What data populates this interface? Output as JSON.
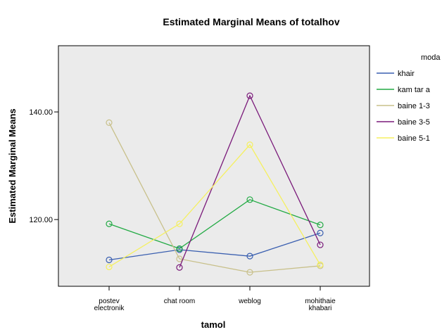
{
  "chart_data": {
    "type": "line",
    "title": "Estimated Marginal Means of totalhov",
    "x_label": "tamol",
    "y_label": "Estimated Marginal Means",
    "legend_title": "moda",
    "categories": [
      "postev\nelectronik",
      "chat room",
      "weblog",
      "mohithaie\nkhabari"
    ],
    "ylim": [
      107.6,
      152.3
    ],
    "yticks": [
      {
        "value": 120,
        "label": "120.00"
      },
      {
        "value": 140,
        "label": "140.00"
      }
    ],
    "series": [
      {
        "name": "khair",
        "color": "#3a5fb0",
        "values": [
          112.5,
          114.4,
          113.2,
          117.5
        ]
      },
      {
        "name": "kam tar a",
        "color": "#22aa44",
        "values": [
          119.2,
          114.6,
          123.7,
          119.0
        ]
      },
      {
        "name": "baine 1-3",
        "color": "#c8c08a",
        "values": [
          138.0,
          112.7,
          110.2,
          111.4
        ]
      },
      {
        "name": "baine 3-5",
        "color": "#7a1a7a",
        "values": [
          null,
          111.1,
          143.0,
          115.3
        ]
      },
      {
        "name": "baine 5-1",
        "color": "#f5f060",
        "values": [
          111.2,
          119.2,
          133.9,
          111.6
        ]
      }
    ]
  }
}
